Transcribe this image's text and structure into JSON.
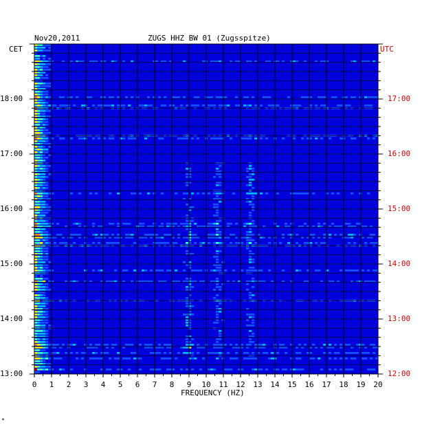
{
  "header": {
    "date": "Nov20,2011",
    "station": "ZUGS HHZ BW 01 (Zugsspitze)",
    "left_zone": "CET",
    "right_zone": "UTC"
  },
  "footer": {
    "mark": "*"
  },
  "chart_data": {
    "type": "heatmap",
    "title": "ZUGS HHZ BW 01 (Zugsspitze)",
    "xlabel": "FREQUENCY (HZ)",
    "xlim": [
      0,
      20
    ],
    "x_ticks": [
      "0",
      "1",
      "2",
      "3",
      "4",
      "5",
      "6",
      "7",
      "8",
      "9",
      "10",
      "11",
      "12",
      "13",
      "14",
      "15",
      "16",
      "17",
      "18",
      "19",
      "20"
    ],
    "y_left_label": "CET",
    "y_left_ticks": [
      "18:00",
      "17:00",
      "16:00",
      "15:00",
      "14:00",
      "13:00"
    ],
    "y_right_label": "UTC",
    "y_right_ticks": [
      "17:00",
      "16:00",
      "15:00",
      "14:00",
      "13:00",
      "12:00"
    ],
    "time_range_cet": [
      "13:00",
      "19:00"
    ],
    "grid": true,
    "colormap": [
      "#00008c",
      "#0000dc",
      "#1450ff",
      "#00b4ff",
      "#3cffc8",
      "#ffff00",
      "#ff8c00",
      "#c80000"
    ],
    "energy_bands_hz": [
      {
        "center": 0.3,
        "strength": "high"
      },
      {
        "center": 9.0,
        "strength": "medium"
      },
      {
        "center": 10.7,
        "strength": "medium"
      },
      {
        "center": 12.6,
        "strength": "medium"
      }
    ]
  }
}
